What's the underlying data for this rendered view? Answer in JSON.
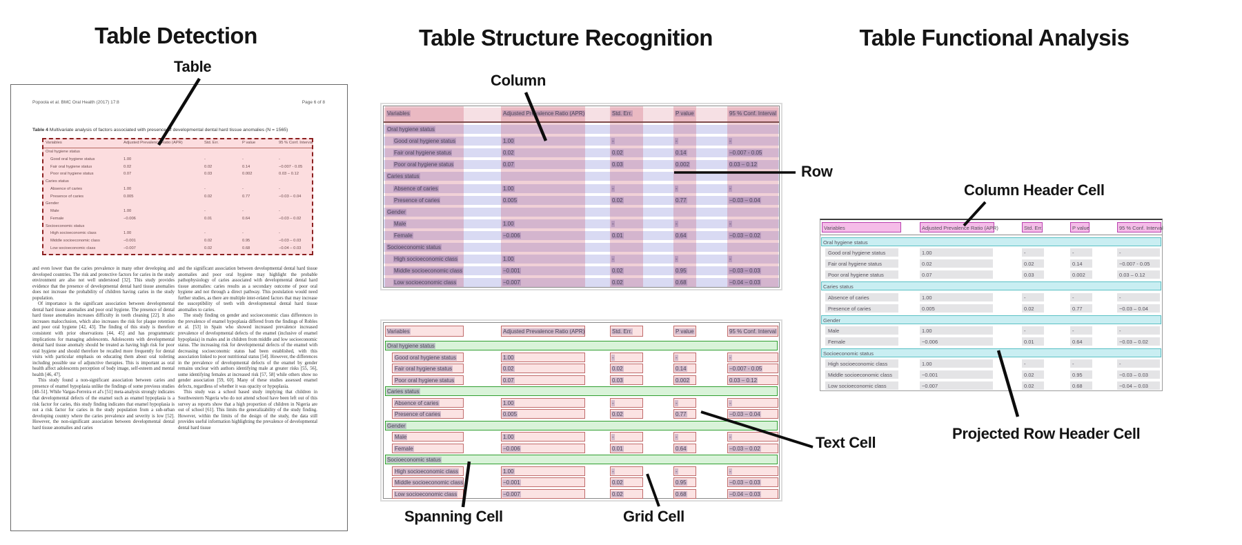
{
  "panels": {
    "detection": {
      "title": "Table Detection",
      "callout_table": "Table"
    },
    "structure": {
      "title": "Table Structure Recognition",
      "callout_column": "Column",
      "callout_row": "Row",
      "callout_spanning_cell": "Spanning Cell",
      "callout_grid_cell": "Grid Cell",
      "callout_text_cell": "Text Cell"
    },
    "functional": {
      "title": "Table Functional Analysis",
      "callout_column_header_cell": "Column Header Cell",
      "callout_projected_row_header_cell": "Projected Row Header Cell"
    }
  },
  "document": {
    "header_left": "Popoola et al. BMC Oral Health  (2017) 17:8",
    "header_right": "Page 6 of 8",
    "caption_bold": "Table 4",
    "caption_rest": " Multivariate analysis of factors associated with presence of developmental dental hard tissue anomalies (N = 1565)",
    "body_left": [
      "and even lower than the caries prevalence in many other developing and developed countries. The risk and protective factors for caries in the study environment are also not well understood [32]. This study provides evidence that the presence of developmental dental hard tissue anomalies does not increase the probability of children having caries in the study population.",
      "Of importance is the significant association between developmental dental hard tissue anomalies and poor oral hygiene. The presence of dental hard tissue anomalies increases difficulty in tooth cleaning [22]. It also increases malocclusion, which also increases the risk for plaque retention and poor oral hygiene [42, 43]. The finding of this study is therefore consistent with prior observations [44, 45] and has programmatic implications for managing adolescents. Adolescents with developmental dental hard tissue anomaly should be treated as having high risk for poor oral hygiene and should therefore be recalled more frequently for dental visits with particular emphasis on educating them about oral toileting including possible use of adjunctive therapies. This is important as oral health affect adolescents perception of body image, self-esteem and mental health [46, 47].",
      "This study found a non-significant association between caries and presence of enamel hypoplasia unlike the findings of some previous studies [48–51]. While Vargas-Ferreira et al's [51] meta-analysis strongly indicates that developmental defects of the enamel such as enamel hypoplasia is a risk factor for caries, this study finding indicates that enamel hypoplasia is not a risk factor for caries in the study population from a sub-urban developing country where the caries prevalence and severity is low [52]. However, the non-significant association between developmental dental hard tissue anomalies and caries"
    ],
    "body_right": [
      "and the significant association between developmental dental hard tissue anomalies and poor oral hygiene may highlight the probable pathophysiology of caries associated with developmental dental hard tissue anomalies: caries results as a secondary outcome of poor oral hygiene and not through a direct pathway. This postulation would need further studies, as there are multiple inter-related factors that may increase the susceptibility of teeth with developmental dental hard tissue anomalies to caries.",
      "The study finding on gender and socioeconomic class differences in the prevalence of enamel hypoplasia differed from the findings of Robles et al. [53] in Spain who showed increased prevalence increased prevalence of developmental defects of the enamel (inclusive of enamel hypoplasia) in males and in children from middle and low socioeconomic status. The increasing risk for developmental defects of the enamel with decreasing socioeconomic status had been established, with this association linked to poor nutritional status [54]. However, the differences in the prevalence of developmental defects of the enamel by gender remains unclear with authors identifying male at greater risks [55, 56], some identifying females at increased risk [57, 58] while others show no gender association [59, 60]. Many of these studies assessed enamel defects, regardless of whether it was opacity or hypoplasia.",
      "This study was a school based study implying that children in Southwestern Nigeria who do not attend school have been left out of this survey as reports show that a high proportion of children in Nigeria are out of school [61]. This limits the generalizability of the study finding. However, within the limits of the design of the study, the data still provides useful information highlighting the prevalence of developmental dental hard tissue"
    ]
  },
  "table": {
    "headers": [
      "Variables",
      "Adjusted Prevalence Ratio (APR)",
      "Std. Err.",
      "P value",
      "95 % Conf. Interval"
    ],
    "rows": [
      {
        "type": "spanning",
        "label": "Oral hygiene status",
        "values": [
          "",
          "",
          "",
          ""
        ]
      },
      {
        "type": "data",
        "label": "Good oral hygiene status",
        "values": [
          "1.00",
          "-",
          "-",
          "-"
        ]
      },
      {
        "type": "data",
        "label": "Fair oral hygiene status",
        "values": [
          "0.02",
          "0.02",
          "0.14",
          "−0.007 - 0.05"
        ]
      },
      {
        "type": "data",
        "label": "Poor oral hygiene status",
        "values": [
          "0.07",
          "0.03",
          "0.002",
          "0.03 – 0.12"
        ]
      },
      {
        "type": "spanning",
        "label": "Caries status",
        "values": [
          "",
          "",
          "",
          ""
        ]
      },
      {
        "type": "data",
        "label": "Absence of caries",
        "values": [
          "1.00",
          "-",
          "-",
          "-"
        ]
      },
      {
        "type": "data",
        "label": "Presence of caries",
        "values": [
          "0.005",
          "0.02",
          "0.77",
          "−0.03 – 0.04"
        ]
      },
      {
        "type": "spanning",
        "label": "Gender",
        "values": [
          "",
          "",
          "",
          ""
        ]
      },
      {
        "type": "data",
        "label": "Male",
        "values": [
          "1.00",
          "-",
          "-",
          "-"
        ]
      },
      {
        "type": "data",
        "label": "Female",
        "values": [
          "−0.006",
          "0.01",
          "0.64",
          "−0.03 – 0.02"
        ]
      },
      {
        "type": "spanning",
        "label": "Socioeconomic status",
        "values": [
          "",
          "",
          "",
          ""
        ]
      },
      {
        "type": "data",
        "label": "High socioeconomic class",
        "values": [
          "1.00",
          "-",
          "-",
          "-"
        ]
      },
      {
        "type": "data",
        "label": "Middle socioeconomic class",
        "values": [
          "−0.001",
          "0.02",
          "0.95",
          "−0.03 – 0.03"
        ]
      },
      {
        "type": "data",
        "label": "Low socioeconomic class",
        "values": [
          "−0.007",
          "0.02",
          "0.68",
          "−0.04 – 0.03"
        ]
      }
    ]
  },
  "colors": {
    "detection_fill": "rgba(242,98,108,0.22)",
    "detection_border": "#8b1f1f",
    "column_band": "rgba(198,62,88,0.24)",
    "row_band": "rgba(128,134,216,0.30)",
    "header_band": "rgba(198,62,88,0.16)",
    "header_rule": "#7d4b4b",
    "text_highlight": "rgba(118,94,150,0.30)",
    "grid_cell_fill": "#fbe3e3",
    "grid_cell_border": "#c06a6a",
    "spanning_fill": "#d9f3d9",
    "spanning_border": "#2f9e2f",
    "column_header_fill": "#f5bce8",
    "column_header_border": "#b83fae",
    "projected_fill": "#c9eef2",
    "projected_border": "#58c0c4",
    "gray_cell": "#e4e4e6",
    "arrow": "#0d0d0d"
  }
}
